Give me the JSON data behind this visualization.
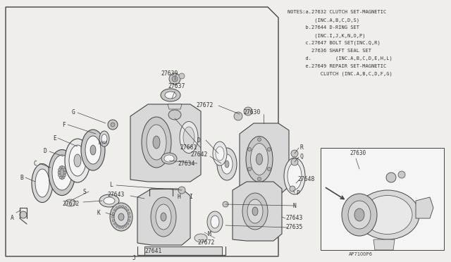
{
  "bg_color": "#f0eeeb",
  "line_color": "#555555",
  "fig_width": 6.4,
  "fig_height": 3.72,
  "notes_lines": [
    "NOTES:a.27632 CLUTCH SET-MAGNETIC",
    "         (INC.A,B,C,D,S)",
    "      b.27644 D-RING SET",
    "         (INC.I,J,K,N,O,P)",
    "      c.27647 BOLT SET(INC.Q,R)",
    "        27636 SHAFT SEAL SET",
    "      d.        (INC.A,B,C,D,E,H,L)",
    "      e.27649 REPAIR SET-MAGNETIC",
    "           CLUTCH (INC.A,B,C,D,F,G)"
  ],
  "footer": "AP71OOP6",
  "lc": "#444444",
  "gray1": "#b0b0b0",
  "gray2": "#c8c8c8",
  "gray3": "#d8d8d8",
  "gray4": "#e8e8e8",
  "white": "#f5f5f5"
}
